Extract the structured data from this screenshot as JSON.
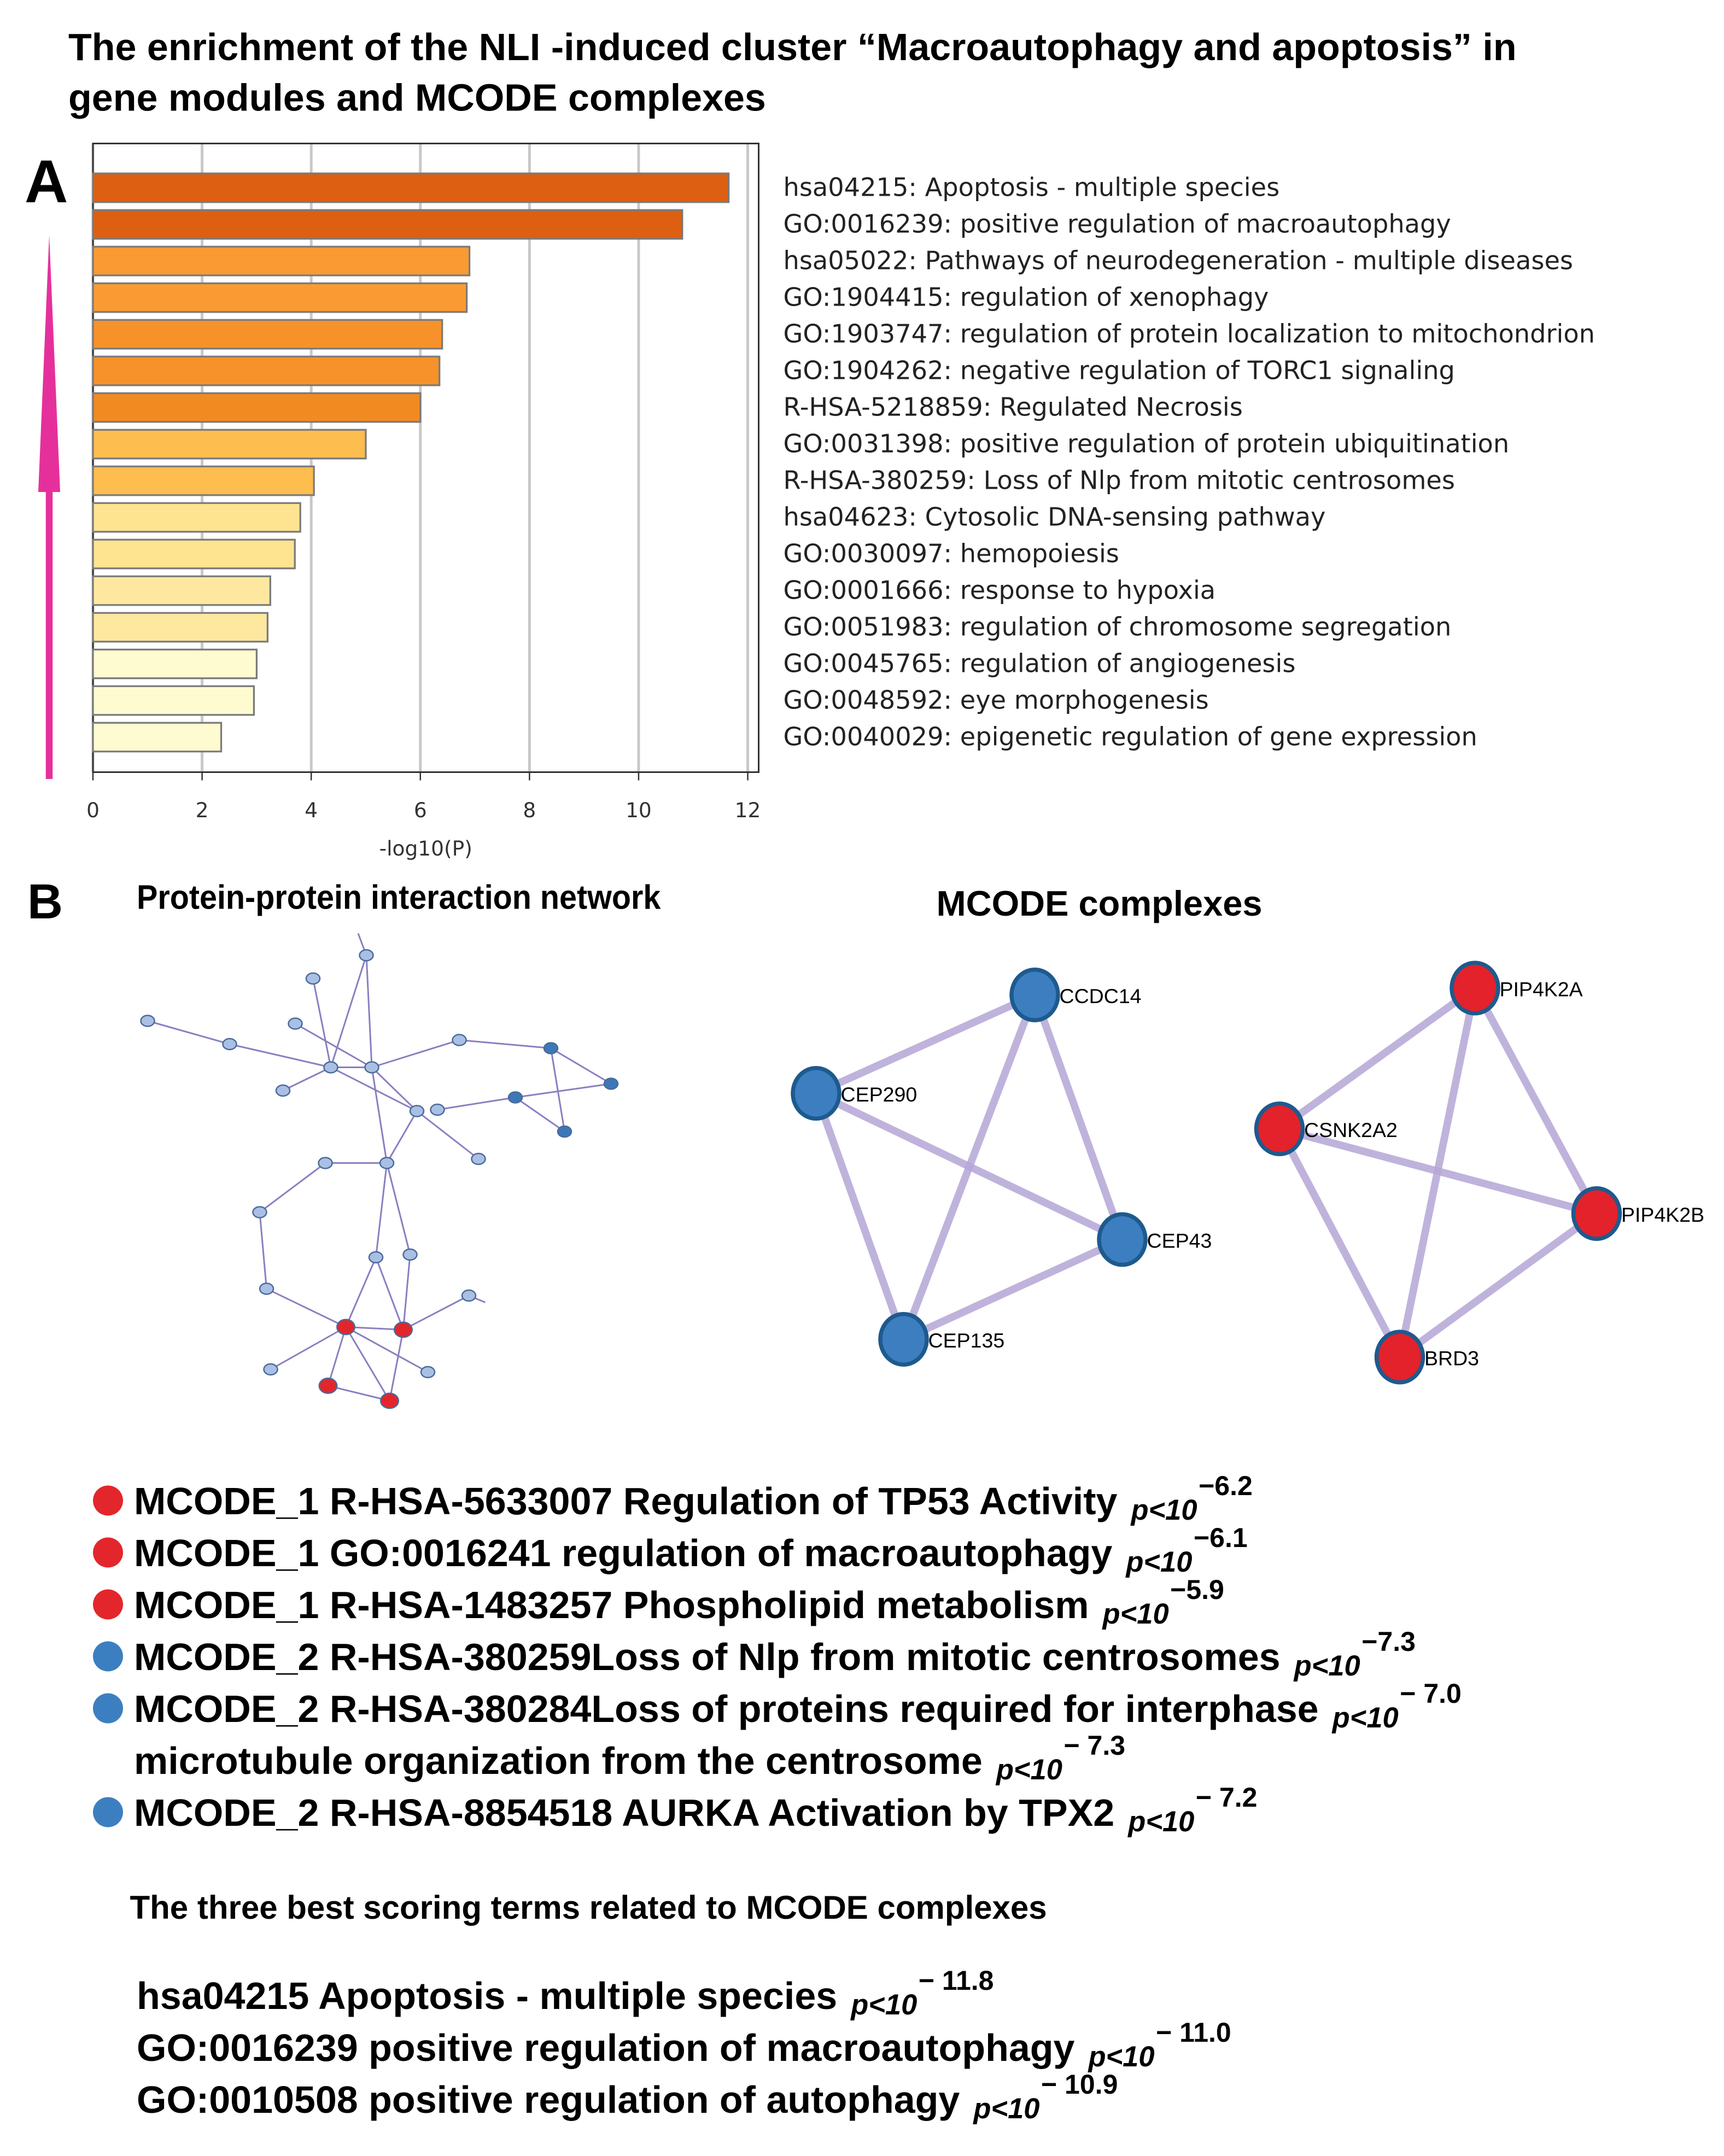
{
  "title_line1": "The enrichment of the NLI -induced cluster “Macroautophagy and apoptosis” in",
  "title_line2": "gene modules and MCODE complexes",
  "panel_a": "A",
  "panel_b": "B",
  "chart_data": {
    "type": "barh",
    "categories": [
      "hsa04215: Apoptosis - multiple species",
      "GO:0016239: positive regulation of macroautophagy",
      "hsa05022: Pathways of neurodegeneration - multiple diseases",
      "GO:1904415: regulation of xenophagy",
      "GO:1903747: regulation of protein localization to mitochondrion",
      "GO:1904262: negative regulation of TORC1 signaling",
      "R-HSA-5218859: Regulated Necrosis",
      "GO:0031398: positive regulation of protein ubiquitination",
      "R-HSA-380259: Loss of Nlp from mitotic centrosomes",
      "hsa04623: Cytosolic DNA-sensing pathway",
      "GO:0030097: hemopoiesis",
      "GO:0001666: response to hypoxia",
      "GO:0051983: regulation of chromosome segregation",
      "GO:0045765: regulation of angiogenesis",
      "GO:0048592: eye morphogenesis",
      "GO:0040029: epigenetic regulation of gene expression"
    ],
    "values": [
      11.65,
      10.8,
      6.9,
      6.85,
      6.4,
      6.35,
      6.0,
      5.0,
      4.05,
      3.8,
      3.7,
      3.25,
      3.2,
      3.0,
      2.95,
      2.35
    ],
    "colors": [
      "#dc5f12",
      "#dc5f12",
      "#f99b32",
      "#f99b32",
      "#f7922a",
      "#f7922a",
      "#f28a22",
      "#fdbd4f",
      "#fdbd4f",
      "#fee391",
      "#fee391",
      "#fee8a0",
      "#fee8a0",
      "#fffbd0",
      "#fffbd0",
      "#fffbd0"
    ],
    "xlabel": "-log10(P)",
    "xlim": [
      0,
      12.2
    ],
    "xticks": [
      0,
      2,
      4,
      6,
      8,
      10,
      12
    ],
    "grid": true
  },
  "network_title": "Protein-protein interaction network",
  "mcode_title": "MCODE complexes",
  "mcode_nodes": [
    "CCDC14",
    "CEP290",
    "CEP43",
    "CEP135",
    "PIP4K2A",
    "CSNK2A2",
    "PIP4K2B",
    "BRD3"
  ],
  "mcode_terms": [
    {
      "text": "MCODE_1 R-HSA-5633007 Regulation of TP53 Activity",
      "p": "p<10",
      "exponent": "−6.2",
      "color": "#e3262b"
    },
    {
      "text": "MCODE_1 GO:0016241 regulation of macroautophagy",
      "p": "p<10",
      "exponent": "−6.1",
      "color": "#e3262b"
    },
    {
      "text": "MCODE_1 R-HSA-1483257 Phospholipid metabolism",
      "p": "p<10",
      "exponent": "−5.9",
      "color": "#e3262b"
    },
    {
      "text": "MCODE_2 R-HSA-380259Loss of Nlp from mitotic centrosomes",
      "p": "p<10",
      "exponent": "−7.3",
      "color": "#3c7fc0"
    },
    {
      "text": "MCODE_2 R-HSA-380284Loss of proteins required for interphase",
      "p": "p<10",
      "exponent": "− 7.0",
      "color": "#3c7fc0"
    },
    {
      "text": "microtubule organization from the centrosome",
      "p": "p<10",
      "exponent": "− 7.3"
    },
    {
      "text": "MCODE_2 R-HSA-8854518 AURKA Activation by TPX2",
      "p": "p<10",
      "exponent": "− 7.2",
      "color": "#3c7fc0"
    }
  ],
  "best_header": "The three best scoring terms related to MCODE complexes",
  "best_terms": [
    {
      "text": "hsa04215 Apoptosis - multiple species",
      "p": "p<10",
      "exponent": "− 11.8"
    },
    {
      "text": "GO:0016239 positive regulation of macroautophagy",
      "p": "p<10",
      "exponent": "− 11.0"
    },
    {
      "text": "GO:0010508 positive regulation of autophagy",
      "p": "p<10",
      "exponent": "−  10.9"
    }
  ]
}
